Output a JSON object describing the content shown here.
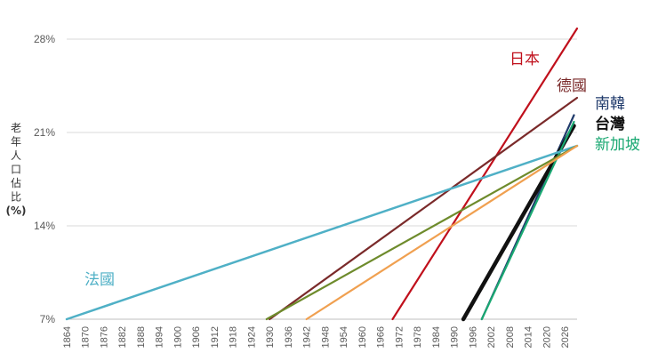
{
  "chart_data": {
    "type": "line",
    "title": "",
    "xlabel": "",
    "ylabel": "老年人口佔比(%)",
    "ylabel_lines": [
      "老",
      "年",
      "人",
      "口",
      "佔",
      "比",
      "(%)"
    ],
    "xlim": [
      1864,
      2030
    ],
    "ylim": [
      7,
      28
    ],
    "x_ticks": [
      1864,
      1870,
      1876,
      1882,
      1888,
      1894,
      1900,
      1906,
      1912,
      1918,
      1924,
      1930,
      1936,
      1942,
      1948,
      1954,
      1960,
      1966,
      1972,
      1978,
      1984,
      1990,
      1996,
      2002,
      2008,
      2014,
      2020,
      2026
    ],
    "y_ticks": [
      {
        "value": 7,
        "label": "7%"
      },
      {
        "value": 14,
        "label": "14%"
      },
      {
        "value": 21,
        "label": "21%"
      },
      {
        "value": 28,
        "label": "28%"
      }
    ],
    "grid": true,
    "series": [
      {
        "name": "日本",
        "color": "#c0101c",
        "width": 2.2,
        "x": [
          1970,
          2030
        ],
        "y": [
          7,
          28.8
        ]
      },
      {
        "name": "德國",
        "color": "#7a2a2a",
        "width": 2.2,
        "x": [
          1930,
          2030
        ],
        "y": [
          7,
          23.6
        ]
      },
      {
        "name": "南韓",
        "color": "#1f3a6b",
        "width": 2.2,
        "x": [
          1999,
          2029
        ],
        "y": [
          7,
          22.3
        ]
      },
      {
        "name": "台灣",
        "color": "#111111",
        "width": 4.5,
        "x": [
          1993,
          2029
        ],
        "y": [
          7,
          21.5
        ]
      },
      {
        "name": "新加坡",
        "color": "#1aa872",
        "width": 2.2,
        "x": [
          1999,
          2029
        ],
        "y": [
          7,
          21.8
        ]
      },
      {
        "name": "法國",
        "color": "#4fb0c6",
        "width": 2.5,
        "x": [
          1864,
          2030
        ],
        "y": [
          7,
          20.0
        ]
      },
      {
        "name": "",
        "color": "#6e8b2c",
        "width": 2.2,
        "x": [
          1929,
          2030
        ],
        "y": [
          7,
          20.0
        ]
      },
      {
        "name": "",
        "color": "#f0a050",
        "width": 2.2,
        "x": [
          1942,
          2030
        ],
        "y": [
          7,
          20.0
        ]
      }
    ],
    "annotations": [
      {
        "text": "日本",
        "color": "#c0101c"
      },
      {
        "text": "德國",
        "color": "#7a2a2a"
      },
      {
        "text": "南韓",
        "color": "#1f3a6b"
      },
      {
        "text": "台灣",
        "color": "#111111"
      },
      {
        "text": "新加坡",
        "color": "#1aa872"
      },
      {
        "text": "法國",
        "color": "#4fb0c6"
      }
    ]
  }
}
